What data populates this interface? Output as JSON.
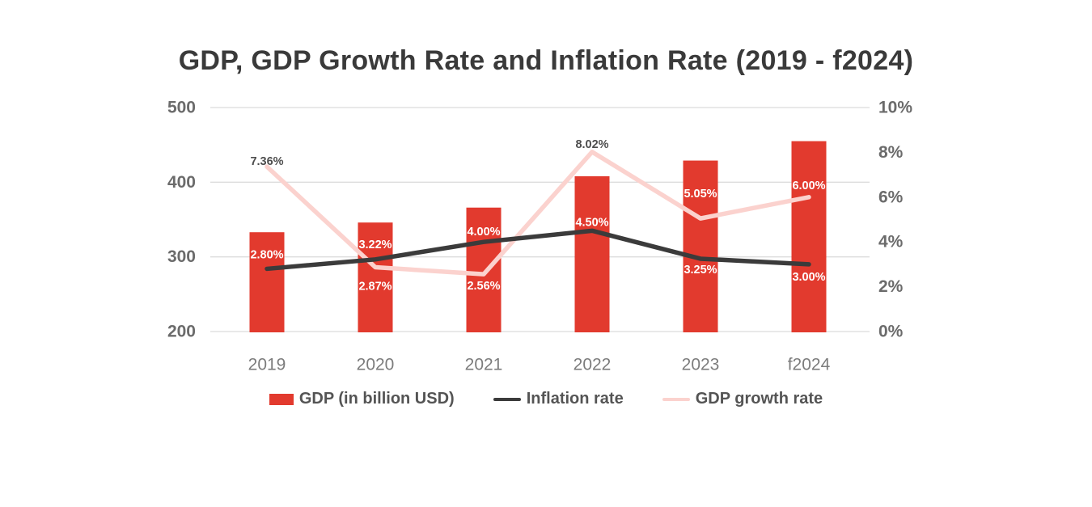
{
  "title": "GDP, GDP Growth Rate and Inflation Rate (2019 - f2024)",
  "colors": {
    "background": "#ffffff",
    "bar_red": "#e23a2e",
    "inflation_line": "#3b3b3b",
    "growth_line": "#fbd2ce",
    "gridline": "#dcdcdc",
    "title_text": "#3a3a3a",
    "axis_tick_text": "#6b6b6b",
    "year_text": "#7c7c7c",
    "legend_text": "#545454",
    "label_on_bar": "#ffffff",
    "label_on_white": "#4d4d4d"
  },
  "chart_data": {
    "type": "bar",
    "subtype": "combo bar + two lines, dual axis",
    "title": "GDP, GDP Growth Rate and Inflation Rate (2019 - f2024)",
    "categories": [
      "2019",
      "2020",
      "2021",
      "2022",
      "2023",
      "f2024"
    ],
    "series": [
      {
        "name": "GDP (in billion USD)",
        "type": "bar",
        "axis": "left",
        "values": [
          333,
          346,
          366,
          408,
          429,
          455
        ]
      },
      {
        "name": "Inflation rate",
        "type": "line",
        "axis": "right",
        "values": [
          2.8,
          3.22,
          4.0,
          4.5,
          3.25,
          3.0
        ],
        "data_labels": [
          "2.80%",
          "3.22%",
          "4.00%",
          "4.50%",
          "3.25%",
          "3.00%"
        ]
      },
      {
        "name": "GDP growth rate",
        "type": "line",
        "axis": "right",
        "values": [
          7.36,
          2.87,
          2.56,
          8.02,
          5.05,
          6.0
        ],
        "data_labels": [
          "7.36%",
          "2.87%",
          "2.56%",
          "8.02%",
          "5.05%",
          "6.00%"
        ]
      }
    ],
    "left_axis": {
      "min": 200,
      "max": 500,
      "ticks": [
        200,
        300,
        400,
        500
      ],
      "tick_labels": [
        "200",
        "300",
        "400",
        "500"
      ]
    },
    "right_axis": {
      "min": 0,
      "max": 10,
      "ticks": [
        0,
        2,
        4,
        6,
        8,
        10
      ],
      "tick_labels": [
        "0%",
        "2%",
        "4%",
        "6%",
        "8%",
        "10%"
      ]
    },
    "grid": "horizontal only, at left-axis ticks",
    "legend_position": "bottom center"
  },
  "legend": {
    "items": [
      {
        "label": "GDP (in billion USD)",
        "swatch": "red-bar-swatch"
      },
      {
        "label": "Inflation rate",
        "swatch": "dark-line-swatch"
      },
      {
        "label": "GDP growth rate",
        "swatch": "pink-line-swatch"
      }
    ]
  }
}
